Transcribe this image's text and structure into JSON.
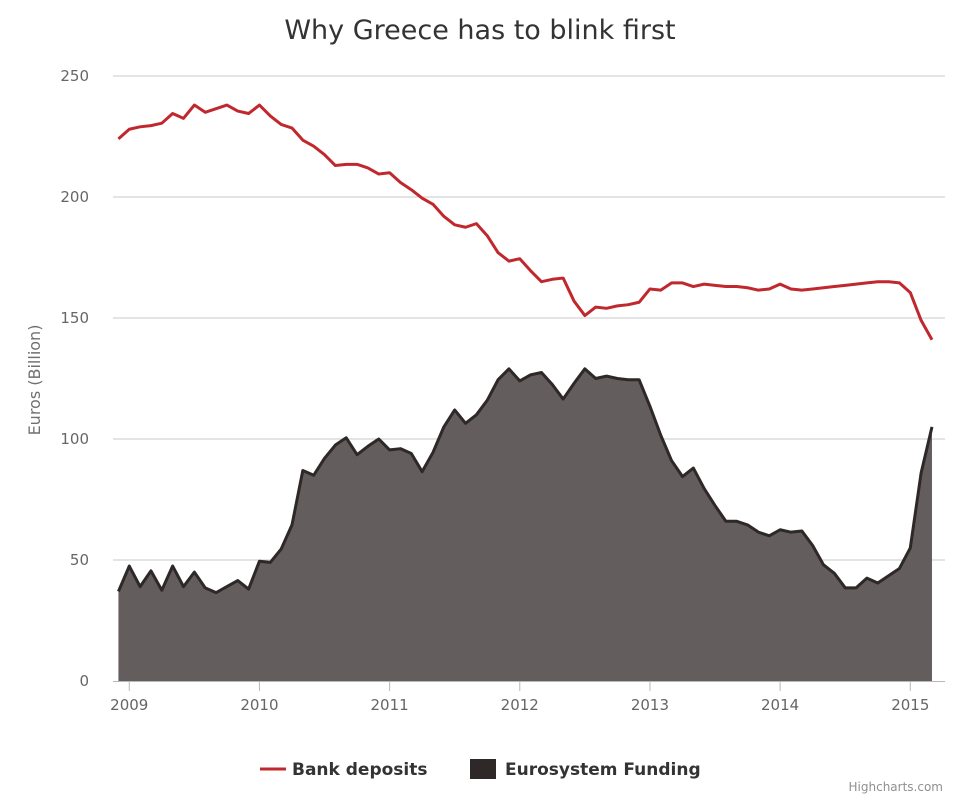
{
  "chart_data": {
    "type": "area",
    "title": "Why Greece has to blink first",
    "ylabel": "Euros (Billion)",
    "xlabel": "",
    "ylim": [
      0,
      250
    ],
    "yticks": [
      0,
      50,
      100,
      150,
      200,
      250
    ],
    "xticks": [
      "2009",
      "2010",
      "2011",
      "2012",
      "2013",
      "2014",
      "2015"
    ],
    "grid": true,
    "legend": "bottom-center",
    "credit": "Highcharts.com",
    "series": [
      {
        "name": "Bank deposits",
        "kind": "line",
        "color": "#c0282d",
        "points": [
          [
            "2008-12",
            224
          ],
          [
            "2009-01",
            228
          ],
          [
            "2009-02",
            229
          ],
          [
            "2009-03",
            229.5
          ],
          [
            "2009-04",
            230.5
          ],
          [
            "2009-05",
            234.5
          ],
          [
            "2009-06",
            232.5
          ],
          [
            "2009-07",
            238
          ],
          [
            "2009-08",
            235
          ],
          [
            "2009-09",
            236.5
          ],
          [
            "2009-10",
            238
          ],
          [
            "2009-11",
            235.5
          ],
          [
            "2009-12",
            234.5
          ],
          [
            "2010-01",
            238
          ],
          [
            "2010-02",
            233.5
          ],
          [
            "2010-03",
            230
          ],
          [
            "2010-04",
            228.5
          ],
          [
            "2010-05",
            223.5
          ],
          [
            "2010-06",
            221
          ],
          [
            "2010-07",
            217.5
          ],
          [
            "2010-08",
            213
          ],
          [
            "2010-09",
            213.5
          ],
          [
            "2010-10",
            213.5
          ],
          [
            "2010-11",
            212
          ],
          [
            "2010-12",
            209.5
          ],
          [
            "2011-01",
            210
          ],
          [
            "2011-02",
            206
          ],
          [
            "2011-03",
            203
          ],
          [
            "2011-04",
            199.5
          ],
          [
            "2011-05",
            197
          ],
          [
            "2011-06",
            192
          ],
          [
            "2011-07",
            188.5
          ],
          [
            "2011-08",
            187.5
          ],
          [
            "2011-09",
            189
          ],
          [
            "2011-10",
            184
          ],
          [
            "2011-11",
            177
          ],
          [
            "2011-12",
            173.5
          ],
          [
            "2012-01",
            174.5
          ],
          [
            "2012-02",
            169.5
          ],
          [
            "2012-03",
            165
          ],
          [
            "2012-04",
            166
          ],
          [
            "2012-05",
            166.5
          ],
          [
            "2012-06",
            157
          ],
          [
            "2012-07",
            151
          ],
          [
            "2012-08",
            154.5
          ],
          [
            "2012-09",
            154
          ],
          [
            "2012-10",
            155
          ],
          [
            "2012-11",
            155.5
          ],
          [
            "2012-12",
            156.5
          ],
          [
            "2013-01",
            162
          ],
          [
            "2013-02",
            161.5
          ],
          [
            "2013-03",
            164.5
          ],
          [
            "2013-04",
            164.5
          ],
          [
            "2013-05",
            163
          ],
          [
            "2013-06",
            164
          ],
          [
            "2013-07",
            163.5
          ],
          [
            "2013-08",
            163
          ],
          [
            "2013-09",
            163
          ],
          [
            "2013-10",
            162.5
          ],
          [
            "2013-11",
            161.5
          ],
          [
            "2013-12",
            162
          ],
          [
            "2014-01",
            164
          ],
          [
            "2014-02",
            162
          ],
          [
            "2014-03",
            161.5
          ],
          [
            "2014-04",
            162
          ],
          [
            "2014-05",
            162.5
          ],
          [
            "2014-06",
            163
          ],
          [
            "2014-07",
            163.5
          ],
          [
            "2014-08",
            164
          ],
          [
            "2014-09",
            164.5
          ],
          [
            "2014-10",
            165
          ],
          [
            "2014-11",
            165
          ],
          [
            "2014-12",
            164.5
          ],
          [
            "2015-01",
            160.5
          ],
          [
            "2015-02",
            149
          ],
          [
            "2015-03",
            141
          ]
        ]
      },
      {
        "name": "Eurosystem Funding",
        "kind": "area",
        "color": "#2e2828",
        "fill": "#645d5d",
        "points": [
          [
            "2008-12",
            37
          ],
          [
            "2009-01",
            47.5
          ],
          [
            "2009-02",
            39
          ],
          [
            "2009-03",
            45.5
          ],
          [
            "2009-04",
            37.5
          ],
          [
            "2009-05",
            47.5
          ],
          [
            "2009-06",
            39
          ],
          [
            "2009-07",
            45
          ],
          [
            "2009-08",
            38.5
          ],
          [
            "2009-09",
            36.5
          ],
          [
            "2009-10",
            39
          ],
          [
            "2009-11",
            41.5
          ],
          [
            "2009-12",
            38
          ],
          [
            "2010-01",
            49.5
          ],
          [
            "2010-02",
            49
          ],
          [
            "2010-03",
            54.5
          ],
          [
            "2010-04",
            64.5
          ],
          [
            "2010-05",
            87
          ],
          [
            "2010-06",
            85
          ],
          [
            "2010-07",
            92
          ],
          [
            "2010-08",
            97.5
          ],
          [
            "2010-09",
            100.5
          ],
          [
            "2010-10",
            93.5
          ],
          [
            "2010-11",
            97
          ],
          [
            "2010-12",
            100
          ],
          [
            "2011-01",
            95.5
          ],
          [
            "2011-02",
            96
          ],
          [
            "2011-03",
            94
          ],
          [
            "2011-04",
            86.5
          ],
          [
            "2011-05",
            94.5
          ],
          [
            "2011-06",
            105
          ],
          [
            "2011-07",
            112
          ],
          [
            "2011-08",
            106.5
          ],
          [
            "2011-09",
            110
          ],
          [
            "2011-10",
            116
          ],
          [
            "2011-11",
            124.5
          ],
          [
            "2011-12",
            129
          ],
          [
            "2012-01",
            124
          ],
          [
            "2012-02",
            126.5
          ],
          [
            "2012-03",
            127.5
          ],
          [
            "2012-04",
            122.5
          ],
          [
            "2012-05",
            116.5
          ],
          [
            "2012-06",
            123
          ],
          [
            "2012-07",
            129
          ],
          [
            "2012-08",
            125
          ],
          [
            "2012-09",
            126
          ],
          [
            "2012-10",
            125
          ],
          [
            "2012-11",
            124.5
          ],
          [
            "2012-12",
            124.5
          ],
          [
            "2013-01",
            113.5
          ],
          [
            "2013-02",
            101.5
          ],
          [
            "2013-03",
            91
          ],
          [
            "2013-04",
            84.5
          ],
          [
            "2013-05",
            88
          ],
          [
            "2013-06",
            79.5
          ],
          [
            "2013-07",
            72.5
          ],
          [
            "2013-08",
            66
          ],
          [
            "2013-09",
            66
          ],
          [
            "2013-10",
            64.5
          ],
          [
            "2013-11",
            61.5
          ],
          [
            "2013-12",
            60
          ],
          [
            "2014-01",
            62.5
          ],
          [
            "2014-02",
            61.5
          ],
          [
            "2014-03",
            62
          ],
          [
            "2014-04",
            56
          ],
          [
            "2014-05",
            48
          ],
          [
            "2014-06",
            44.5
          ],
          [
            "2014-07",
            38.5
          ],
          [
            "2014-08",
            38.5
          ],
          [
            "2014-09",
            42.5
          ],
          [
            "2014-10",
            40.5
          ],
          [
            "2014-11",
            43.5
          ],
          [
            "2014-12",
            46.5
          ],
          [
            "2015-01",
            55
          ],
          [
            "2015-02",
            86
          ],
          [
            "2015-03",
            105
          ]
        ]
      }
    ]
  }
}
